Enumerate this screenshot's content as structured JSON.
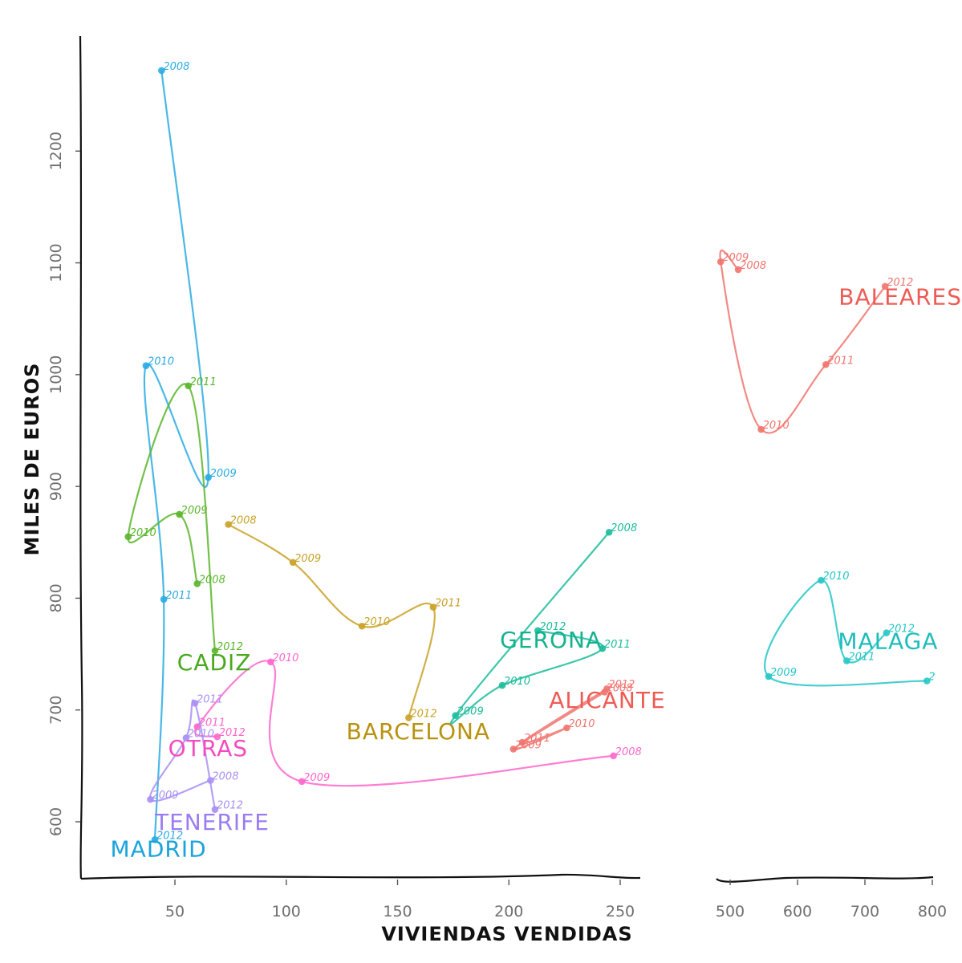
{
  "chart_data": {
    "type": "line",
    "xlabel": "VIVIENDAS VENDIDAS",
    "ylabel": "MILES DE EUROS",
    "ylim": [
      530,
      1290
    ],
    "y_ticks": [
      600,
      700,
      800,
      900,
      1000,
      1100,
      1200
    ],
    "panels": [
      {
        "xlim": [
          10,
          260
        ],
        "x_ticks": [
          50,
          100,
          150,
          200,
          250
        ]
      },
      {
        "xlim": [
          480,
          800
        ],
        "x_ticks": [
          500,
          600,
          700,
          800
        ]
      }
    ],
    "series": [
      {
        "name": "MADRID",
        "color": "#29abe2",
        "panel": 0,
        "points": [
          {
            "year": "2008",
            "x": 44,
            "y": 1272
          },
          {
            "year": "2009",
            "x": 65,
            "y": 908
          },
          {
            "year": "2010",
            "x": 37,
            "y": 1008
          },
          {
            "year": "2011",
            "x": 45,
            "y": 799
          },
          {
            "year": "2012",
            "x": 41,
            "y": 584
          }
        ]
      },
      {
        "name": "CADIZ",
        "color": "#5ab52a",
        "panel": 0,
        "points": [
          {
            "year": "2008",
            "x": 60,
            "y": 813
          },
          {
            "year": "2009",
            "x": 52,
            "y": 875
          },
          {
            "year": "2010",
            "x": 29,
            "y": 855
          },
          {
            "year": "2011",
            "x": 56,
            "y": 990
          },
          {
            "year": "2012",
            "x": 68,
            "y": 753
          }
        ]
      },
      {
        "name": "BARCELONA",
        "color": "#c9a227",
        "panel": 0,
        "points": [
          {
            "year": "2008",
            "x": 74,
            "y": 866
          },
          {
            "year": "2009",
            "x": 103,
            "y": 832
          },
          {
            "year": "2010",
            "x": 134,
            "y": 775
          },
          {
            "year": "2011",
            "x": 166,
            "y": 792
          },
          {
            "year": "2012",
            "x": 155,
            "y": 693
          }
        ]
      },
      {
        "name": "GERONA",
        "color": "#1abc9c",
        "panel": 0,
        "points": [
          {
            "year": "2008",
            "x": 245,
            "y": 859
          },
          {
            "year": "2009",
            "x": 176,
            "y": 695
          },
          {
            "year": "2010",
            "x": 197,
            "y": 722
          },
          {
            "year": "2011",
            "x": 242,
            "y": 755
          },
          {
            "year": "2012",
            "x": 213,
            "y": 771
          }
        ]
      },
      {
        "name": "ALICANTE",
        "color": "#f0746e",
        "panel": 0,
        "points": [
          {
            "year": "2008",
            "x": 243,
            "y": 716
          },
          {
            "year": "2009",
            "x": 202,
            "y": 665
          },
          {
            "year": "2010",
            "x": 226,
            "y": 684
          },
          {
            "year": "2011",
            "x": 206,
            "y": 671
          },
          {
            "year": "2012",
            "x": 244,
            "y": 719
          }
        ]
      },
      {
        "name": "OTRAS",
        "color": "#ff66cc",
        "panel": 0,
        "points": [
          {
            "year": "2008",
            "x": 247,
            "y": 659
          },
          {
            "year": "2009",
            "x": 107,
            "y": 636
          },
          {
            "year": "2010",
            "x": 93,
            "y": 743
          },
          {
            "year": "2011",
            "x": 60,
            "y": 685
          },
          {
            "year": "2012",
            "x": 69,
            "y": 676
          }
        ]
      },
      {
        "name": "TENERIFE",
        "color": "#a98ff5",
        "panel": 0,
        "points": [
          {
            "year": "2008",
            "x": 66,
            "y": 637
          },
          {
            "year": "2009",
            "x": 39,
            "y": 620
          },
          {
            "year": "2010",
            "x": 55,
            "y": 675
          },
          {
            "year": "2011",
            "x": 59,
            "y": 706
          },
          {
            "year": "2012",
            "x": 68,
            "y": 611
          }
        ]
      },
      {
        "name": "BALEARES",
        "color": "#f0746e",
        "panel": 1,
        "points": [
          {
            "year": "2008",
            "x": 512,
            "y": 1094
          },
          {
            "year": "2009",
            "x": 486,
            "y": 1101
          },
          {
            "year": "2010",
            "x": 546,
            "y": 951
          },
          {
            "year": "2011",
            "x": 642,
            "y": 1009
          },
          {
            "year": "2012",
            "x": 730,
            "y": 1079
          }
        ]
      },
      {
        "name": "MALAGA",
        "color": "#26c6c6",
        "panel": 1,
        "points": [
          {
            "year": "2008",
            "x": 792,
            "y": 726
          },
          {
            "year": "2009",
            "x": 557,
            "y": 730
          },
          {
            "year": "2010",
            "x": 635,
            "y": 816
          },
          {
            "year": "2011",
            "x": 673,
            "y": 744
          },
          {
            "year": "2012",
            "x": 732,
            "y": 769
          }
        ]
      }
    ],
    "point_labels": {
      "MALAGA": {
        "2008": "2"
      }
    },
    "region_labels": [
      {
        "name": "MADRID",
        "color": "#1aa3dd",
        "x": 21,
        "y": 576
      },
      {
        "name": "CADIZ",
        "color": "#49a81d",
        "x": 51,
        "y": 743
      },
      {
        "name": "BARCELONA",
        "color": "#b8920f",
        "x": 127,
        "y": 681
      },
      {
        "name": "GERONA",
        "color": "#14b28f",
        "x": 196,
        "y": 763
      },
      {
        "name": "ALICANTE",
        "color": "#ee5b55",
        "x": 218,
        "y": 709
      },
      {
        "name": "OTRAS",
        "color": "#f24cc0",
        "x": 47,
        "y": 666
      },
      {
        "name": "TENERIFE",
        "color": "#9b7cf2",
        "x": 41,
        "y": 600
      },
      {
        "name": "BALEARES",
        "color": "#ee5b55",
        "x": 661,
        "y": 1070,
        "panel": 1
      },
      {
        "name": "MALAGA",
        "color": "#1fbcbc",
        "x": 660,
        "y": 762,
        "panel": 1
      }
    ]
  }
}
